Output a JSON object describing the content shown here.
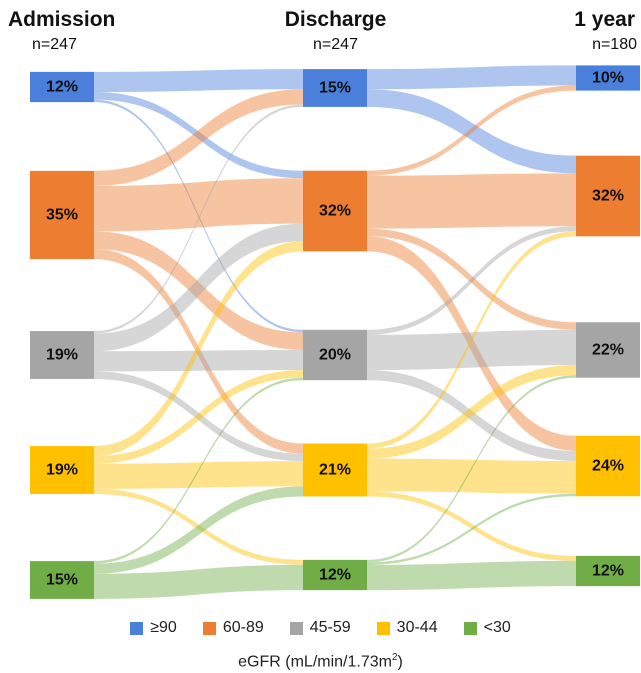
{
  "chart_data": {
    "type": "sankey",
    "stages": [
      {
        "name": "Admission",
        "n_label": "n=247"
      },
      {
        "name": "Discharge",
        "n_label": "n=247"
      },
      {
        "name": "1 year",
        "n_label": "n=180"
      }
    ],
    "categories": [
      "≥90",
      "60-89",
      "45-59",
      "30-44",
      "<30"
    ],
    "colors": [
      "#4a7fdc",
      "#ed7d31",
      "#a5a5a5",
      "#ffc000",
      "#70ad47"
    ],
    "percent_labels": [
      [
        "12%",
        "35%",
        "19%",
        "19%",
        "15%"
      ],
      [
        "15%",
        "32%",
        "20%",
        "21%",
        "12%"
      ],
      [
        "10%",
        "32%",
        "22%",
        "24%",
        "12%"
      ]
    ],
    "values": [
      [
        12,
        35,
        19,
        19,
        15
      ],
      [
        15,
        32,
        20,
        21,
        12
      ],
      [
        10,
        32,
        22,
        24,
        12
      ]
    ],
    "flows": [
      [
        [
          8,
          3,
          1,
          0,
          0
        ],
        [
          6,
          18,
          7,
          4,
          0
        ],
        [
          1,
          7,
          8,
          3,
          0
        ],
        [
          0,
          4,
          3,
          10,
          2
        ],
        [
          0,
          0,
          1,
          4,
          10
        ]
      ],
      [
        [
          8,
          7,
          0,
          0,
          0
        ],
        [
          2,
          21,
          3,
          6,
          0
        ],
        [
          0,
          2,
          14,
          4,
          0
        ],
        [
          0,
          2,
          4,
          13,
          2
        ],
        [
          0,
          0,
          1,
          1,
          10
        ]
      ]
    ],
    "legend_placement": "bottom",
    "xlabel": "eGFR (mL/min/1.73m",
    "xlabel_sup": "2",
    "xlabel_close": ")"
  }
}
